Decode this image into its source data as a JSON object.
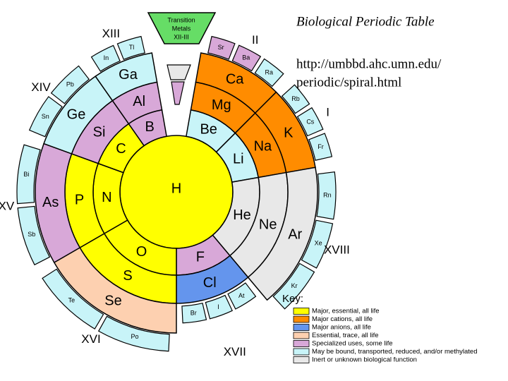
{
  "title": "Biological Periodic Table",
  "url": [
    "http://umbbd.ahc.umn.edu/",
    "periodic/spiral.html"
  ],
  "transition": [
    "Transition",
    "Metals",
    "XII-III"
  ],
  "center": {
    "symbol": "H",
    "color": "#ffff00"
  },
  "groups": [
    {
      "numeral": "II",
      "elements": [
        {
          "symbol": "Be",
          "color": "#c8f4f8"
        },
        {
          "symbol": "Mg",
          "color": "#ff8c00"
        },
        {
          "symbol": "Ca",
          "color": "#ff8c00"
        }
      ],
      "tabs": [
        {
          "symbol": "Sr",
          "color": "#d8a8d8"
        },
        {
          "symbol": "Ba",
          "color": "#d8a8d8"
        },
        {
          "symbol": "Ra",
          "color": "#c8f4f8"
        }
      ]
    },
    {
      "numeral": "I",
      "elements": [
        {
          "symbol": "Li",
          "color": "#c8f4f8"
        },
        {
          "symbol": "Na",
          "color": "#ff8c00"
        },
        {
          "symbol": "K",
          "color": "#ff8c00"
        }
      ],
      "tabs": [
        {
          "symbol": "Rb",
          "color": "#c8f4f8"
        },
        {
          "symbol": "Cs",
          "color": "#c8f4f8"
        },
        {
          "symbol": "Fr",
          "color": "#c8f4f8"
        }
      ]
    },
    {
      "numeral": "XVIII",
      "elements": [
        {
          "symbol": "He",
          "color": "#e8e8e8"
        },
        {
          "symbol": "Ne",
          "color": "#e8e8e8"
        },
        {
          "symbol": "Ar",
          "color": "#e8e8e8"
        }
      ],
      "tabs": [
        {
          "symbol": "Rn",
          "color": "#c8f4f8"
        },
        {
          "symbol": "Xe",
          "color": "#c8f4f8"
        },
        {
          "symbol": "Kr",
          "color": "#c8f4f8"
        }
      ]
    },
    {
      "numeral": "XVII",
      "elements": [
        {
          "symbol": "F",
          "color": "#d8a8d8"
        },
        {
          "symbol": "Cl",
          "color": "#6495ed"
        }
      ],
      "tabs": [
        {
          "symbol": "At",
          "color": "#c8f4f8"
        },
        {
          "symbol": "I",
          "color": "#c8f4f8"
        },
        {
          "symbol": "Br",
          "color": "#c8f4f8"
        }
      ]
    },
    {
      "numeral": "XVI",
      "elements": [
        {
          "symbol": "O",
          "color": "#ffff00"
        },
        {
          "symbol": "S",
          "color": "#ffff00"
        },
        {
          "symbol": "Se",
          "color": "#fdd0b0"
        }
      ],
      "tabs": [
        {
          "symbol": "Po",
          "color": "#c8f4f8"
        },
        {
          "symbol": "Te",
          "color": "#c8f4f8"
        }
      ]
    },
    {
      "numeral": "XV",
      "elements": [
        {
          "symbol": "N",
          "color": "#ffff00"
        },
        {
          "symbol": "P",
          "color": "#ffff00"
        },
        {
          "symbol": "As",
          "color": "#d8a8d8"
        }
      ],
      "tabs": [
        {
          "symbol": "Sb",
          "color": "#c8f4f8"
        },
        {
          "symbol": "Bi",
          "color": "#c8f4f8"
        }
      ]
    },
    {
      "numeral": "XIV",
      "elements": [
        {
          "symbol": "C",
          "color": "#ffff00"
        },
        {
          "symbol": "Si",
          "color": "#d8a8d8"
        },
        {
          "symbol": "Ge",
          "color": "#c8f4f8"
        }
      ],
      "tabs": [
        {
          "symbol": "Sn",
          "color": "#c8f4f8"
        },
        {
          "symbol": "Pb",
          "color": "#c8f4f8"
        }
      ]
    },
    {
      "numeral": "XIII",
      "elements": [
        {
          "symbol": "B",
          "color": "#d8a8d8"
        },
        {
          "symbol": "Al",
          "color": "#d8a8d8"
        },
        {
          "symbol": "Ga",
          "color": "#c8f4f8"
        }
      ],
      "tabs": [
        {
          "symbol": "In",
          "color": "#c8f4f8"
        },
        {
          "symbol": "Tl",
          "color": "#c8f4f8"
        }
      ]
    }
  ],
  "key": {
    "title": "Key:",
    "items": [
      {
        "label": "Major, essential, all life",
        "color": "#ffff00"
      },
      {
        "label": "Major cations, all life",
        "color": "#ff8c00"
      },
      {
        "label": "Major anions, all life",
        "color": "#6495ed"
      },
      {
        "label": "Essential, trace, all life",
        "color": "#fdd0b0"
      },
      {
        "label": "Specialized uses, some life",
        "color": "#d8a8d8"
      },
      {
        "label": "May be bound, transported, reduced, and/or methylated",
        "color": "#c8f4f8"
      },
      {
        "label": "Inert or unknown biological function",
        "color": "#e8e8e8"
      }
    ]
  }
}
